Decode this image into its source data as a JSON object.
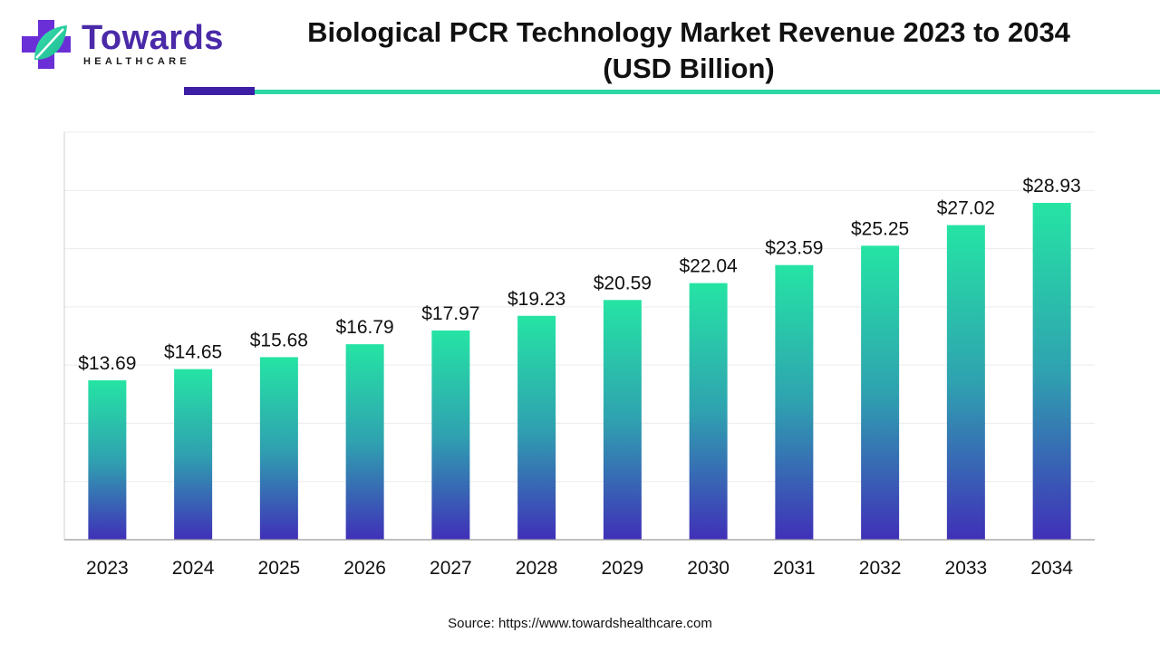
{
  "logo": {
    "word": "Towards",
    "sub": "HEALTHCARE",
    "icon": "medical-cross-leaf-icon",
    "colors": {
      "purple": "#6a2fd6",
      "teal": "#2dd6a4"
    }
  },
  "header": {
    "title_line1": "Biological PCR Technology Market Revenue 2023 to 2034",
    "title_line2": "(USD Billion)"
  },
  "chart_data": {
    "type": "bar",
    "title": "Biological PCR Technology Market Revenue 2023 to 2034 (USD Billion)",
    "categories": [
      "2023",
      "2024",
      "2025",
      "2026",
      "2027",
      "2028",
      "2029",
      "2030",
      "2031",
      "2032",
      "2033",
      "2034"
    ],
    "values": [
      13.69,
      14.65,
      15.68,
      16.79,
      17.97,
      19.23,
      20.59,
      22.04,
      23.59,
      25.25,
      27.02,
      28.93
    ],
    "data_labels": [
      "$13.69",
      "$14.65",
      "$15.68",
      "$16.79",
      "$17.97",
      "$19.23",
      "$20.59",
      "$22.04",
      "$23.59",
      "$25.25",
      "$27.02",
      "$28.93"
    ],
    "xlabel": "",
    "ylabel": "",
    "ylim": [
      0,
      35
    ],
    "grid": true,
    "bar_gradient": {
      "top": "#25e4a4",
      "bottom": "#4030b8"
    }
  },
  "footer": {
    "source": "Source: https://www.towardshealthcare.com"
  }
}
